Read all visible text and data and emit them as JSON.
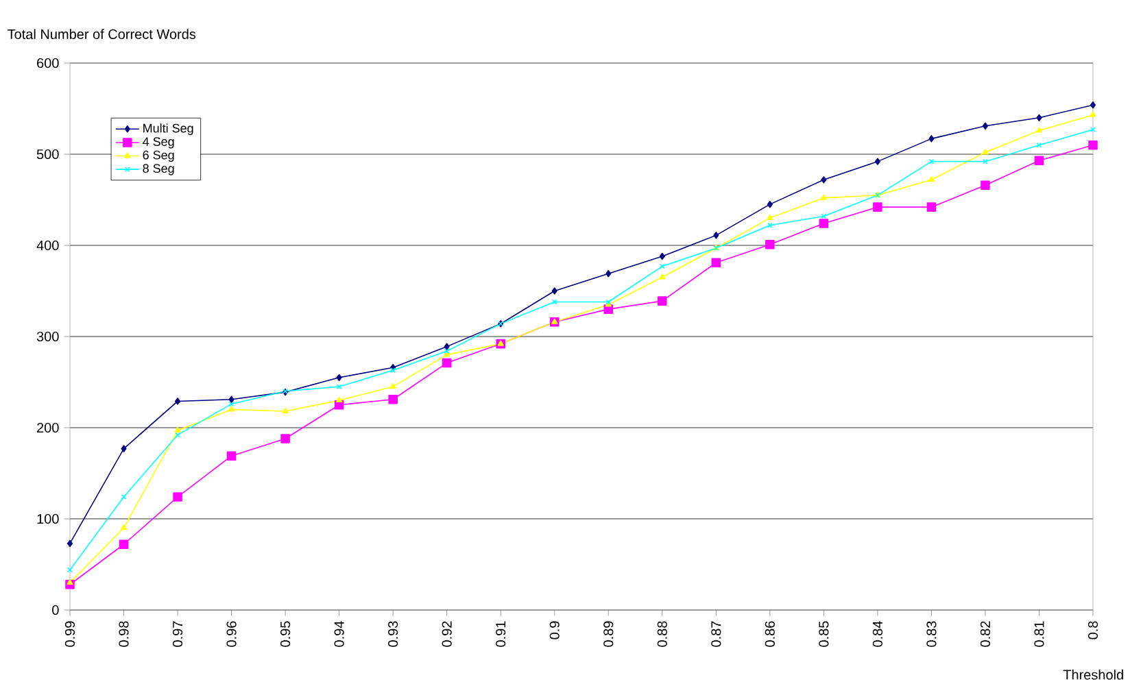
{
  "chart_data": {
    "type": "line",
    "ylabel": "Total Number of Correct Words",
    "xlabel": "Threshold",
    "categories": [
      "0.99",
      "0.98",
      "0.97",
      "0.96",
      "0.95",
      "0.94",
      "0.93",
      "0.92",
      "0.91",
      "0.9",
      "0.89",
      "0.88",
      "0.87",
      "0.86",
      "0.85",
      "0.84",
      "0.83",
      "0.82",
      "0.81",
      "0.8"
    ],
    "series": [
      {
        "name": "Multi Seg",
        "color": "#000080",
        "marker": "diamond",
        "values": [
          73,
          177,
          229,
          231,
          239,
          255,
          266,
          289,
          314,
          350,
          369,
          388,
          411,
          445,
          472,
          492,
          517,
          531,
          540,
          554
        ]
      },
      {
        "name": "4 Seg",
        "color": "#ff00ff",
        "marker": "square",
        "values": [
          28,
          72,
          124,
          169,
          188,
          225,
          231,
          271,
          292,
          316,
          330,
          339,
          381,
          401,
          424,
          442,
          442,
          466,
          493,
          510
        ]
      },
      {
        "name": "6 Seg",
        "color": "#ffff00",
        "marker": "triangle",
        "values": [
          30,
          90,
          197,
          220,
          218,
          230,
          245,
          280,
          292,
          316,
          335,
          365,
          397,
          430,
          452,
          455,
          472,
          502,
          526,
          543
        ]
      },
      {
        "name": "8 Seg",
        "color": "#00ffff",
        "marker": "cross",
        "values": [
          44,
          124,
          192,
          226,
          240,
          245,
          263,
          284,
          314,
          338,
          338,
          377,
          397,
          422,
          432,
          455,
          492,
          492,
          510,
          527
        ]
      }
    ],
    "ylim": [
      0,
      600
    ],
    "yticks": [
      0,
      100,
      200,
      300,
      400,
      500,
      600
    ],
    "grid": "y",
    "legend": "top left",
    "line_style": "solid"
  }
}
